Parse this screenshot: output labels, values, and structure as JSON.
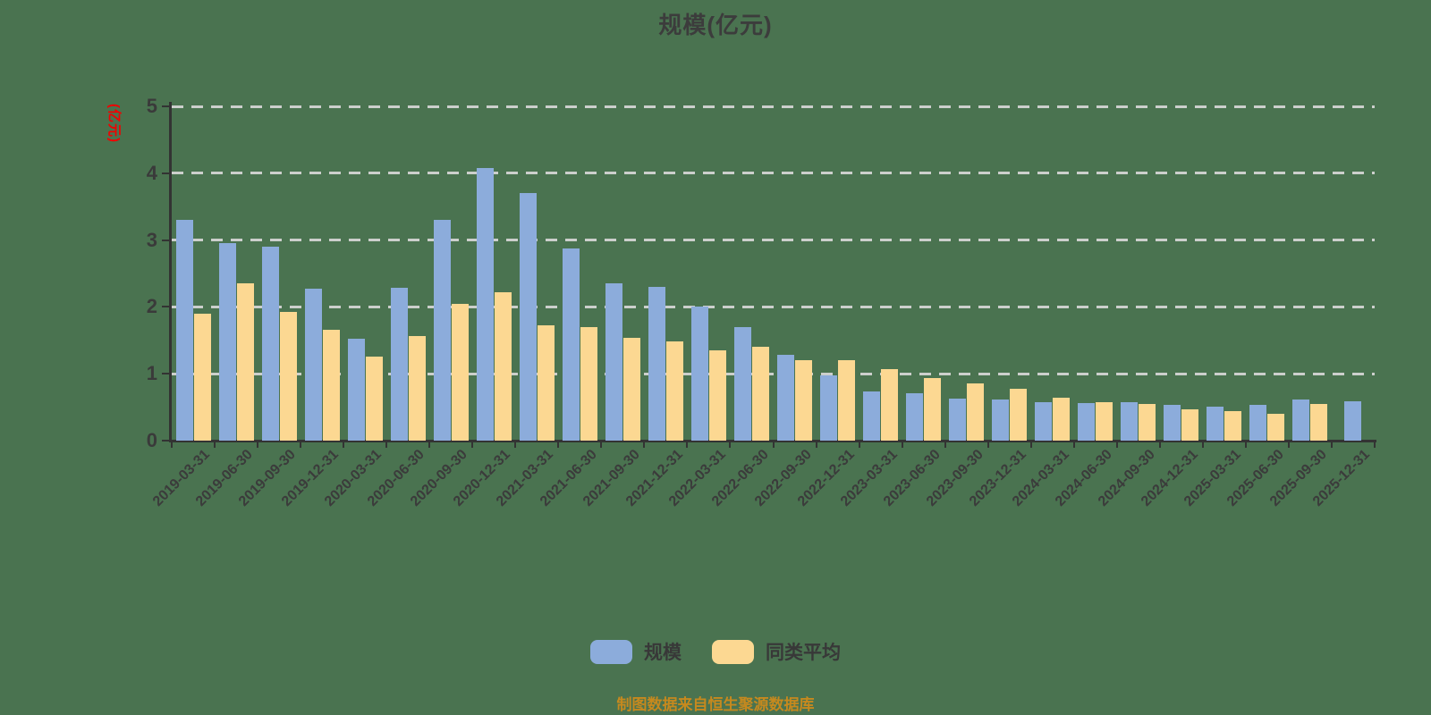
{
  "title": "规模(亿元)",
  "y_axis_name": "(亿元)",
  "footnote": "制图数据来自恒生聚源数据库",
  "colors": {
    "background": "#4A7350",
    "bar_scale": "#8CACDB",
    "bar_peer_average": "#FCD892",
    "axis": "#333333",
    "gridline": "#D7D7D7",
    "title_text": "#3C3C3C",
    "y_axis_name_text": "#F20000",
    "footnote_text": "#C6891E"
  },
  "legend": {
    "items": [
      {
        "id": "scale",
        "label": "规模",
        "color": "#8CACDB"
      },
      {
        "id": "peer-average",
        "label": "同类平均",
        "color": "#FCD892"
      }
    ]
  },
  "chart_data": {
    "type": "bar",
    "title": "规模(亿元)",
    "xlabel": "",
    "ylabel": "(亿元)",
    "ylim": [
      0,
      5
    ],
    "yticks": [
      0,
      1,
      2,
      3,
      4,
      5
    ],
    "grid": "horizontal-dashed",
    "legend_position": "bottom",
    "categories": [
      "2019-03-31",
      "2019-06-30",
      "2019-09-30",
      "2019-12-31",
      "2020-03-31",
      "2020-06-30",
      "2020-09-30",
      "2020-12-31",
      "2021-03-31",
      "2021-06-30",
      "2021-09-30",
      "2021-12-31",
      "2022-03-31",
      "2022-06-30",
      "2022-09-30",
      "2022-12-31",
      "2023-03-31",
      "2023-06-30",
      "2023-09-30",
      "2023-12-31",
      "2024-03-31",
      "2024-06-30",
      "2024-09-30",
      "2024-12-31",
      "2025-03-31",
      "2025-06-30",
      "2025-09-30",
      "2025-12-31"
    ],
    "series": [
      {
        "id": "scale",
        "name": "规模",
        "color": "#8CACDB",
        "values": [
          3.3,
          2.96,
          2.9,
          2.27,
          1.52,
          2.29,
          3.3,
          4.08,
          3.7,
          2.87,
          2.36,
          2.3,
          2.0,
          1.7,
          1.28,
          0.97,
          0.73,
          0.71,
          0.63,
          0.61,
          0.58,
          0.56,
          0.58,
          0.53,
          0.51,
          0.53,
          0.62,
          0.59
        ]
      },
      {
        "id": "peer-average",
        "name": "同类平均",
        "color": "#FCD892",
        "values": [
          1.9,
          2.35,
          1.93,
          1.66,
          1.26,
          1.57,
          2.05,
          2.22,
          1.73,
          1.7,
          1.54,
          1.49,
          1.35,
          1.4,
          1.21,
          1.21,
          1.07,
          0.94,
          0.86,
          0.77,
          0.64,
          0.58,
          0.55,
          0.47,
          0.44,
          0.4,
          0.55,
          null
        ]
      }
    ]
  }
}
